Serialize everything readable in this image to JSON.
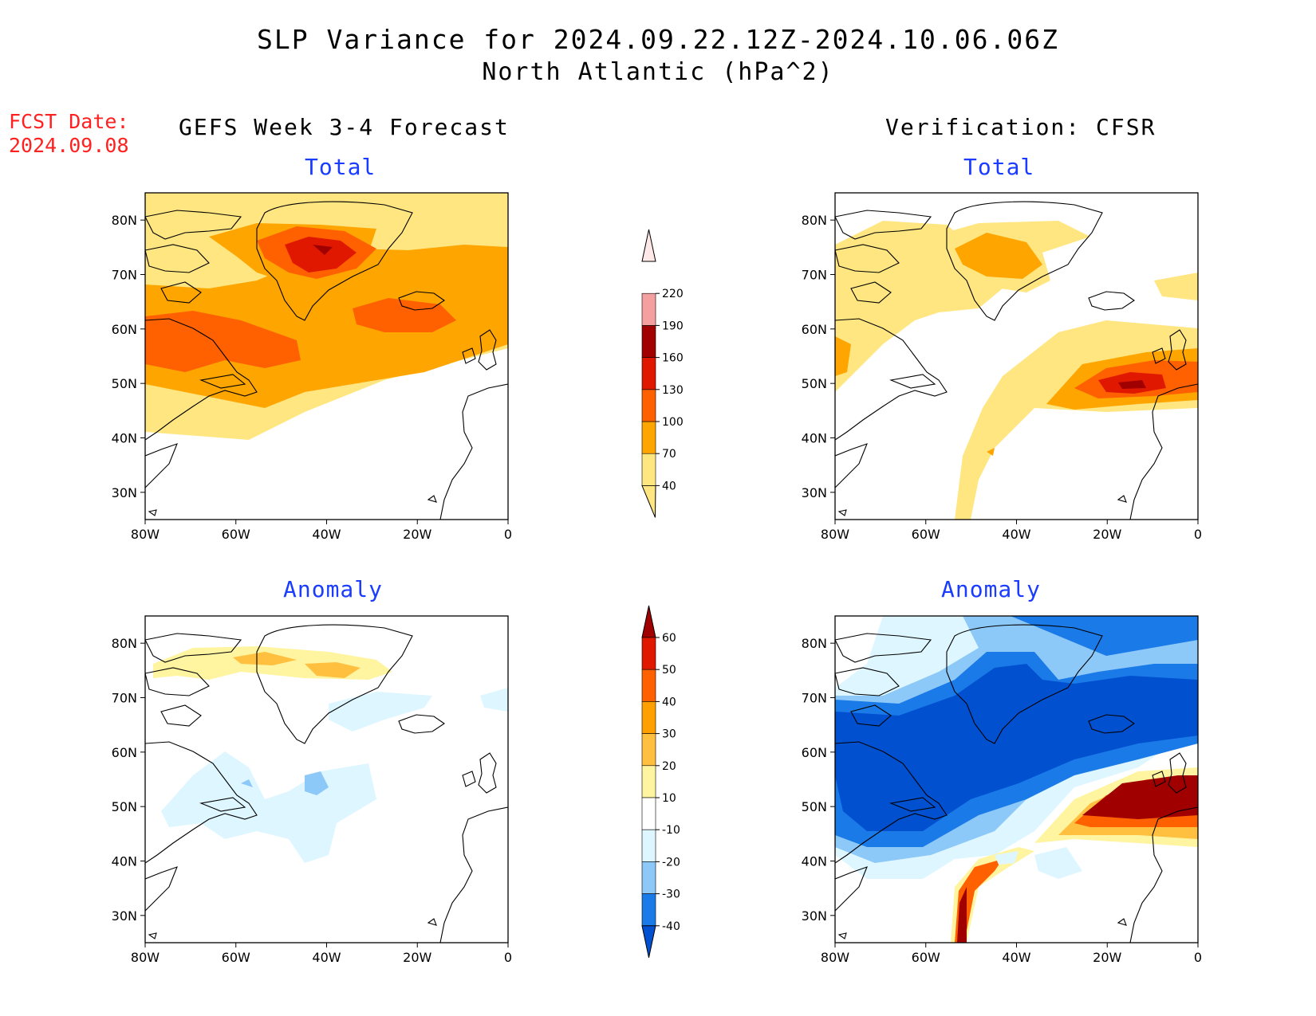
{
  "title_line1": "SLP Variance for 2024.09.22.12Z-2024.10.06.06Z",
  "title_line2": "North Atlantic (hPa^2)",
  "fcst_label": "FCST Date:",
  "fcst_date": "2024.09.08",
  "left_column_title": "GEFS Week 3-4 Forecast",
  "right_column_title": "Verification: CFSR",
  "panels": {
    "gefs_total": {
      "label": "Total"
    },
    "cfsr_total": {
      "label": "Total"
    },
    "gefs_anomaly": {
      "label": "Anomaly"
    },
    "cfsr_anomaly": {
      "label": "Anomaly"
    }
  },
  "axes": {
    "lat_ticks": [
      "80N",
      "70N",
      "60N",
      "50N",
      "40N",
      "30N"
    ],
    "lon_ticks": [
      "80W",
      "60W",
      "40W",
      "20W",
      "0"
    ],
    "lat_values": [
      80,
      70,
      60,
      50,
      40,
      30
    ],
    "lon_values": [
      -80,
      -60,
      -40,
      -20,
      0
    ],
    "lat_range": [
      25,
      85
    ],
    "lon_range": [
      -80,
      0
    ]
  },
  "colorbar_total": {
    "levels": [
      "40",
      "70",
      "100",
      "130",
      "160",
      "190",
      "220"
    ],
    "colors": [
      "#ffe680",
      "#ffa500",
      "#ff6000",
      "#e01800",
      "#a00000",
      "#f4a0a0",
      "#ffe8e8"
    ]
  },
  "colorbar_anomaly": {
    "levels": [
      "-40",
      "-30",
      "-20",
      "-10",
      "10",
      "20",
      "30",
      "40",
      "50",
      "60"
    ],
    "colors": [
      "#0050d0",
      "#1a7ae8",
      "#8cc8f8",
      "#ddf6ff",
      "#ffffff",
      "#fff4a0",
      "#ffc040",
      "#ffa000",
      "#ff6000",
      "#e01800",
      "#a00000"
    ]
  }
}
